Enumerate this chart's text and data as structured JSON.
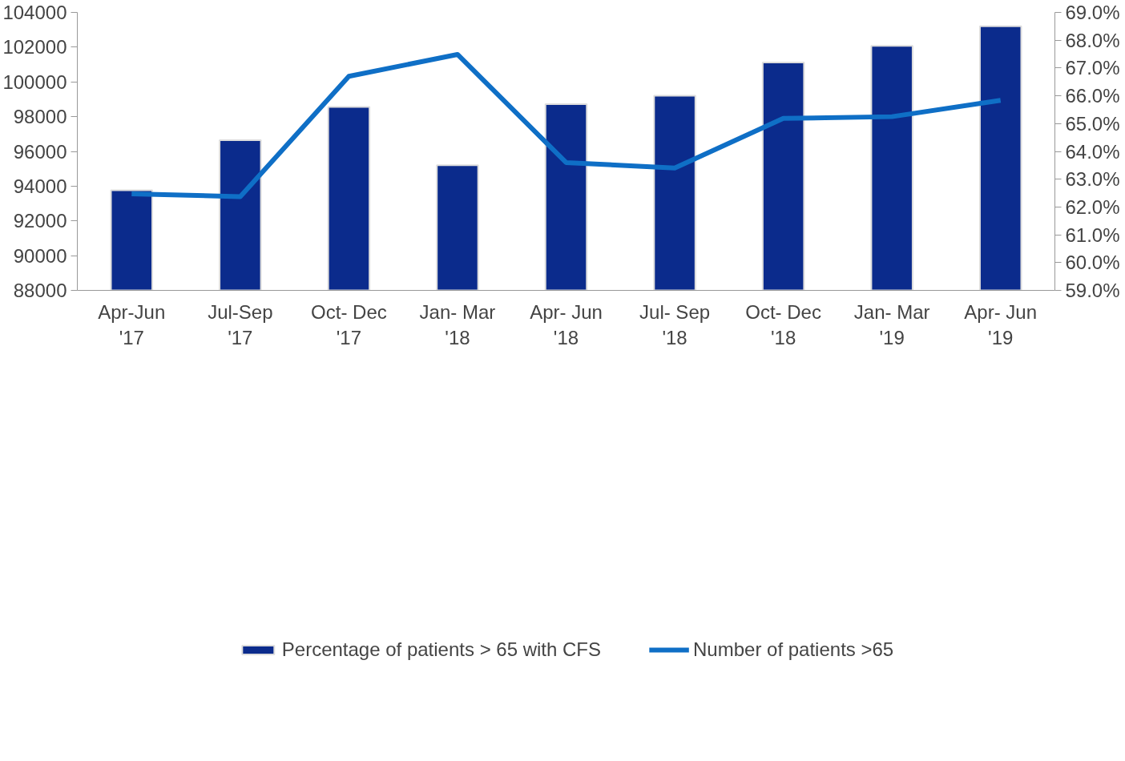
{
  "chart_data": {
    "type": "bar",
    "categories": [
      "Apr-Jun\n'17",
      "Jul-Sep\n'17",
      "Oct- Dec\n'17",
      "Jan- Mar\n'18",
      "Apr- Jun\n'18",
      "Jul- Sep\n'18",
      "Oct- Dec\n'18",
      "Jan- Mar\n'19",
      "Apr- Jun\n'19"
    ],
    "series": [
      {
        "name": "Percentage of patients > 65 with CFS",
        "axis": "y2",
        "color": "#0b2b8c",
        "values": [
          62.6,
          64.4,
          65.6,
          63.5,
          65.7,
          66.0,
          67.2,
          67.8,
          68.5
        ]
      },
      {
        "name": "Number of patients >65",
        "type": "line",
        "color": "#0f6fc6",
        "values": [
          93560,
          93400,
          100320,
          101580,
          95360,
          95040,
          97900,
          98000,
          98940
        ]
      }
    ],
    "ylim": [
      88000,
      104000
    ],
    "yticks": [
      88000,
      90000,
      92000,
      94000,
      96000,
      98000,
      100000,
      102000,
      104000
    ],
    "y2lim": [
      59,
      69
    ],
    "y2ticks": [
      {
        "value": 59,
        "label": "59.0%"
      },
      {
        "value": 60,
        "label": "60.0%"
      },
      {
        "value": 61,
        "label": "61.0%"
      },
      {
        "value": 62,
        "label": "62.0%"
      },
      {
        "value": 63,
        "label": "63.0%"
      },
      {
        "value": 64,
        "label": "64.0%"
      },
      {
        "value": 65,
        "label": "65.0%"
      },
      {
        "value": 66,
        "label": "66.0%"
      },
      {
        "value": 67,
        "label": "67.0%"
      },
      {
        "value": 68,
        "label": "68.0%"
      },
      {
        "value": 69,
        "label": "69.0%"
      }
    ],
    "grid": false,
    "legend": "bottom",
    "marker": "none",
    "line_style": "solid"
  }
}
